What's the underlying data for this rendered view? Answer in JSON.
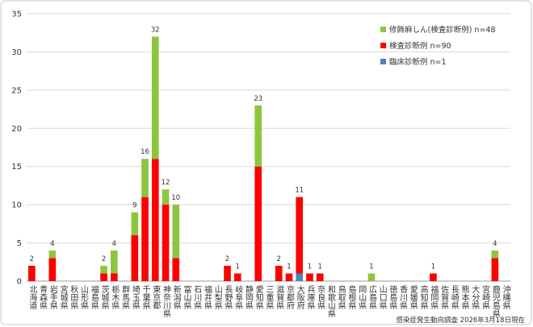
{
  "chart_data": {
    "type": "stacked-bar",
    "categories": [
      "北海道",
      "青森県",
      "岩手県",
      "宮城県",
      "秋田県",
      "山形県",
      "福島県",
      "茨城県",
      "栃木県",
      "群馬県",
      "埼玉県",
      "千葉県",
      "東京都",
      "神奈川県",
      "新潟県",
      "富山県",
      "石川県",
      "福井県",
      "山梨県",
      "長野県",
      "岐阜県",
      "静岡県",
      "愛知県",
      "三重県",
      "滋賀県",
      "京都府",
      "大阪府",
      "兵庫県",
      "奈良県",
      "和歌山県",
      "鳥取県",
      "島根県",
      "岡山県",
      "広島県",
      "山口県",
      "徳島県",
      "香川県",
      "愛媛県",
      "高知県",
      "福岡県",
      "佐賀県",
      "長崎県",
      "熊本県",
      "大分県",
      "宮崎県",
      "鹿児島県",
      "沖縄県"
    ],
    "series": [
      {
        "name": "修飾麻しん(検査診断例) n=48",
        "color": "#8cc63f",
        "values": [
          0,
          0,
          1,
          0,
          0,
          0,
          0,
          1,
          3,
          0,
          3,
          5,
          16,
          2,
          7,
          0,
          0,
          0,
          0,
          0,
          0,
          0,
          8,
          0,
          0,
          0,
          0,
          0,
          0,
          0,
          0,
          0,
          0,
          1,
          0,
          0,
          0,
          0,
          0,
          0,
          0,
          0,
          0,
          0,
          0,
          1,
          0
        ]
      },
      {
        "name": "検査診断例 n=90",
        "color": "#ff0000",
        "values": [
          2,
          0,
          3,
          0,
          0,
          0,
          0,
          1,
          1,
          0,
          6,
          11,
          16,
          10,
          3,
          0,
          0,
          0,
          0,
          2,
          1,
          0,
          15,
          0,
          2,
          1,
          10,
          1,
          1,
          0,
          0,
          0,
          0,
          0,
          0,
          0,
          0,
          0,
          0,
          1,
          0,
          0,
          0,
          0,
          0,
          3,
          0
        ]
      },
      {
        "name": "臨床診断例 n=1",
        "color": "#4f81bd",
        "values": [
          0,
          0,
          0,
          0,
          0,
          0,
          0,
          0,
          0,
          0,
          0,
          0,
          0,
          0,
          0,
          0,
          0,
          0,
          0,
          0,
          0,
          0,
          0,
          0,
          0,
          0,
          1,
          0,
          0,
          0,
          0,
          0,
          0,
          0,
          0,
          0,
          0,
          0,
          0,
          0,
          0,
          0,
          0,
          0,
          0,
          0,
          0
        ]
      }
    ],
    "totals": [
      2,
      null,
      4,
      null,
      null,
      null,
      null,
      2,
      4,
      null,
      9,
      16,
      32,
      12,
      10,
      null,
      null,
      null,
      null,
      2,
      1,
      null,
      23,
      null,
      2,
      1,
      11,
      1,
      1,
      null,
      null,
      null,
      null,
      1,
      null,
      null,
      null,
      null,
      null,
      1,
      null,
      null,
      null,
      null,
      null,
      4,
      null
    ],
    "ylim": [
      0,
      35
    ],
    "yticks": [
      0,
      5,
      10,
      15,
      20,
      25,
      30,
      35
    ],
    "grid": true,
    "legend": "top-right",
    "source": "感染症発生動向調査 2026年3月18日現在"
  }
}
